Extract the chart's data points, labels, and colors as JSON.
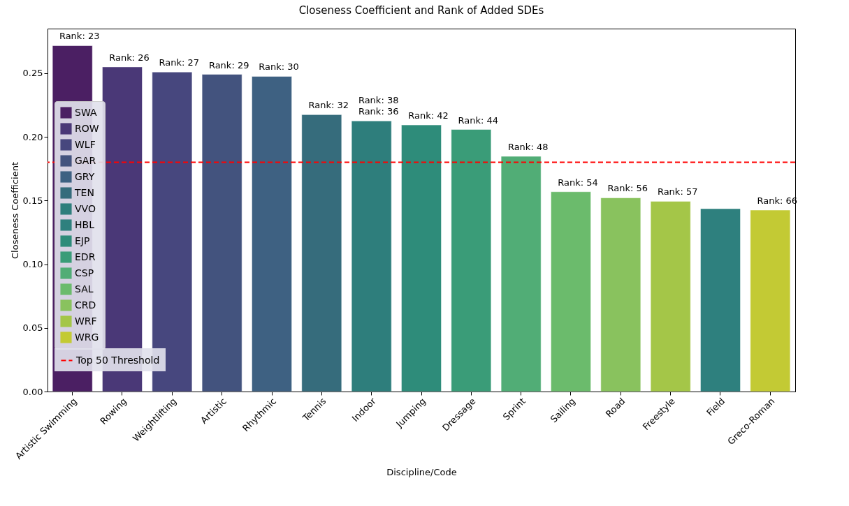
{
  "chart_data": {
    "type": "bar",
    "title": "Closeness Coefficient and Rank of Added SDEs",
    "xlabel": "Discipline/Code",
    "ylabel": "Closeness Coefficient",
    "categories": [
      "Artistic Swimming",
      "Rowing",
      "Weightlifting",
      "Artistic",
      "Rhythmic",
      "Tennis",
      "Indoor",
      "Jumping",
      "Dressage",
      "Sprint",
      "Sailing",
      "Road",
      "Freestyle",
      "Field",
      "Greco-Roman"
    ],
    "series": [
      {
        "name": "SWA",
        "color": "#4b1f63",
        "values": [
          0.2716,
          null,
          null,
          null,
          null,
          null,
          null,
          null,
          null,
          null,
          null,
          null,
          null,
          null,
          null
        ]
      },
      {
        "name": "ROW",
        "color": "#4a3877",
        "values": [
          null,
          0.2549,
          null,
          null,
          null,
          null,
          null,
          null,
          null,
          null,
          null,
          null,
          null,
          null,
          null
        ]
      },
      {
        "name": "WLF",
        "color": "#47477e",
        "values": [
          null,
          null,
          0.2509,
          null,
          null,
          null,
          null,
          null,
          null,
          null,
          null,
          null,
          null,
          null,
          null
        ]
      },
      {
        "name": "GAR",
        "color": "#43537e",
        "values": [
          null,
          null,
          null,
          0.2491,
          null,
          null,
          null,
          null,
          null,
          null,
          null,
          null,
          null,
          null,
          null
        ]
      },
      {
        "name": "GRY",
        "color": "#3e6182",
        "values": [
          null,
          null,
          null,
          null,
          0.2475,
          null,
          null,
          null,
          null,
          null,
          null,
          null,
          null,
          null,
          null
        ]
      },
      {
        "name": "TEN",
        "color": "#366c7c",
        "values": [
          null,
          null,
          null,
          null,
          null,
          0.2174,
          null,
          null,
          null,
          null,
          null,
          null,
          null,
          null,
          null
        ]
      },
      {
        "name": "VVO",
        "color": "#2e7e7c",
        "values": [
          null,
          null,
          null,
          null,
          null,
          null,
          0.2125,
          null,
          null,
          null,
          null,
          null,
          null,
          null,
          null
        ]
      },
      {
        "name": "HBL",
        "color": "#2e807e",
        "values": [
          null,
          null,
          null,
          null,
          null,
          null,
          null,
          null,
          null,
          null,
          null,
          null,
          null,
          0.1436,
          null
        ]
      },
      {
        "name": "EJP",
        "color": "#2e8c7a",
        "values": [
          null,
          null,
          null,
          null,
          null,
          null,
          null,
          0.2093,
          null,
          null,
          null,
          null,
          null,
          null,
          null
        ]
      },
      {
        "name": "EDR",
        "color": "#3a9c78",
        "values": [
          null,
          null,
          null,
          null,
          null,
          null,
          null,
          null,
          0.2058,
          null,
          null,
          null,
          null,
          null,
          null
        ]
      },
      {
        "name": "CSP",
        "color": "#51ad76",
        "values": [
          null,
          null,
          null,
          null,
          null,
          null,
          null,
          null,
          null,
          0.1847,
          null,
          null,
          null,
          null,
          null
        ]
      },
      {
        "name": "SAL",
        "color": "#6bbb6c",
        "values": [
          null,
          null,
          null,
          null,
          null,
          null,
          null,
          null,
          null,
          null,
          0.1569,
          null,
          null,
          null,
          null
        ]
      },
      {
        "name": "CRD",
        "color": "#89c25e",
        "values": [
          null,
          null,
          null,
          null,
          null,
          null,
          null,
          null,
          null,
          null,
          null,
          0.1521,
          null,
          null,
          null
        ]
      },
      {
        "name": "WRF",
        "color": "#a4c648",
        "values": [
          null,
          null,
          null,
          null,
          null,
          null,
          null,
          null,
          null,
          null,
          null,
          null,
          0.1494,
          null,
          null
        ]
      },
      {
        "name": "WRG",
        "color": "#c3ca34",
        "values": [
          null,
          null,
          null,
          null,
          null,
          null,
          null,
          null,
          null,
          null,
          null,
          null,
          null,
          null,
          0.1425
        ]
      }
    ],
    "ref_lines": [
      {
        "axis": "y",
        "value": 0.18,
        "label": "Top 50 Threshold",
        "color": "#ff0000",
        "line_style": "dashed"
      }
    ],
    "annotations": [
      {
        "text": "Rank: 23",
        "x": "Artistic Swimming",
        "y": 0.2716
      },
      {
        "text": "Rank: 26",
        "x": "Rowing",
        "y": 0.2549
      },
      {
        "text": "Rank: 27",
        "x": "Weightlifting",
        "y": 0.2509
      },
      {
        "text": "Rank: 29",
        "x": "Artistic",
        "y": 0.2491
      },
      {
        "text": "Rank: 30",
        "x": "Rhythmic",
        "y": 0.2475
      },
      {
        "text": "Rank: 32",
        "x": "Tennis",
        "y": 0.2174
      },
      {
        "text": "Rank: 36",
        "x": "Indoor",
        "y": 0.2125
      },
      {
        "text": "Rank: 38",
        "x": "Indoor",
        "y": 0.2125
      },
      {
        "text": "Rank: 42",
        "x": "Jumping",
        "y": 0.2093
      },
      {
        "text": "Rank: 44",
        "x": "Dressage",
        "y": 0.2058
      },
      {
        "text": "Rank: 48",
        "x": "Sprint",
        "y": 0.1847
      },
      {
        "text": "Rank: 54",
        "x": "Sailing",
        "y": 0.1569
      },
      {
        "text": "Rank: 56",
        "x": "Road",
        "y": 0.1521
      },
      {
        "text": "Rank: 57",
        "x": "Freestyle",
        "y": 0.1494
      },
      {
        "text": "Rank: 66",
        "x": "Greco-Roman",
        "y": 0.1425
      }
    ],
    "ylim": [
      0,
      0.285
    ],
    "yticks": [
      {
        "value": 0,
        "label": "0.00"
      },
      {
        "value": 0.05,
        "label": "0.05"
      },
      {
        "value": 0.1,
        "label": "0.10"
      },
      {
        "value": 0.15,
        "label": "0.15"
      },
      {
        "value": 0.2,
        "label": "0.20"
      },
      {
        "value": 0.25,
        "label": "0.25"
      }
    ],
    "grid": false,
    "legend": "left"
  }
}
